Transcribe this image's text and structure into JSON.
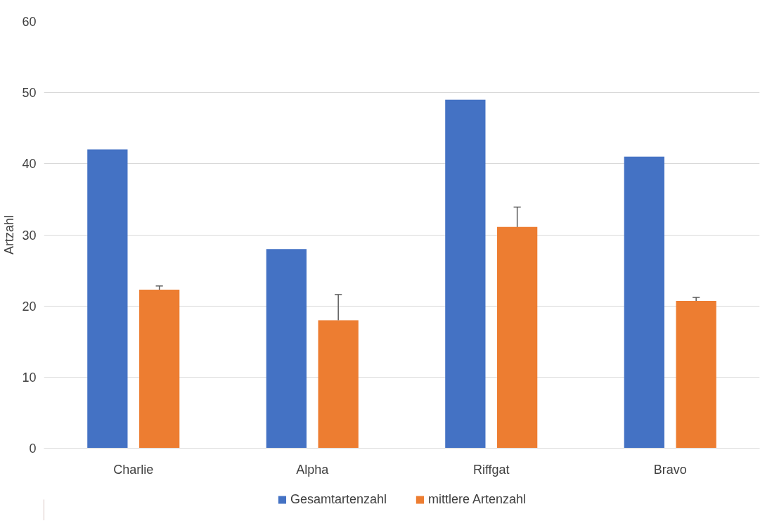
{
  "chart_data": {
    "type": "bar",
    "ylabel": "Artzahl",
    "categories": [
      "Charlie",
      "Alpha",
      "Riffgat",
      "Bravo"
    ],
    "series": [
      {
        "name": "Gesamtartenzahl",
        "color": "#4472c4",
        "values": [
          42,
          28,
          49,
          41
        ]
      },
      {
        "name": "mittlere Artenzahl",
        "color": "#ed7d31",
        "values": [
          22.3,
          18.0,
          31.1,
          20.7
        ],
        "errors": [
          [
            22.3,
            22.8
          ],
          [
            18.0,
            21.6
          ],
          [
            31.1,
            33.9
          ],
          [
            20.7,
            21.2
          ]
        ]
      }
    ],
    "ylim": [
      0,
      60
    ],
    "yticks": [
      0,
      10,
      20,
      30,
      40,
      50,
      60
    ],
    "grid": "y",
    "legend": "bottom"
  }
}
